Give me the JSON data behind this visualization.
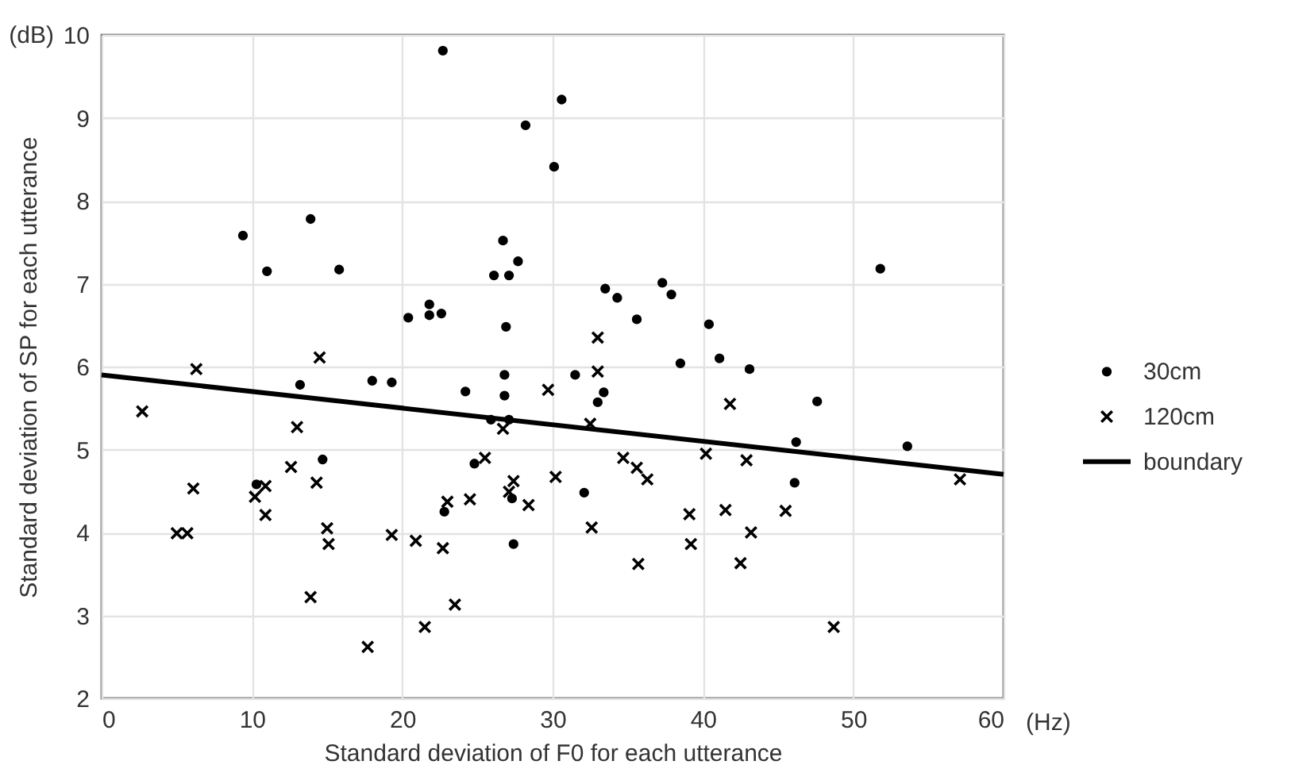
{
  "chart_data": {
    "type": "scatter",
    "xlabel": "Standard deviation of F0 for each utterance",
    "ylabel": "Standard deviation of SP for each utterance",
    "annotations": [
      "(dB)",
      "(Hz)"
    ],
    "xlim": [
      0,
      60
    ],
    "xticks": [
      0,
      10,
      20,
      30,
      40,
      50,
      60
    ],
    "ylim": [
      2,
      10
    ],
    "yticks": [
      2,
      3,
      4,
      5,
      6,
      7,
      8,
      9,
      10
    ],
    "grid": true,
    "legend": "right",
    "series": [
      {
        "name": "30cm",
        "color": "#000000",
        "marker": "circle",
        "x": [
          10.3,
          14.7,
          13.2,
          18.0,
          19.3,
          9.4,
          13.9,
          11.0,
          15.8,
          22.7,
          30.6,
          28.2,
          30.1,
          26.7,
          27.7,
          26.1,
          27.1,
          20.4,
          21.8,
          21.8,
          22.6,
          26.9,
          33.5,
          34.3,
          35.6,
          37.3,
          37.9,
          38.5,
          26.8,
          24.2,
          26.8,
          31.5,
          33.4,
          33.0,
          25.9,
          27.1,
          24.8,
          22.8,
          27.3,
          32.1,
          27.4,
          40.4,
          41.1,
          43.1,
          47.6,
          46.2,
          46.1,
          51.8,
          53.6
        ],
        "values": [
          4.58,
          4.88,
          5.78,
          5.83,
          5.81,
          7.58,
          7.78,
          7.15,
          7.17,
          9.81,
          9.22,
          8.91,
          8.41,
          7.52,
          7.27,
          7.1,
          7.1,
          6.59,
          6.75,
          6.62,
          6.64,
          6.48,
          6.94,
          6.83,
          6.57,
          7.01,
          6.87,
          6.04,
          5.9,
          5.7,
          5.65,
          5.9,
          5.69,
          5.57,
          5.36,
          5.36,
          4.83,
          4.25,
          4.41,
          4.48,
          3.86,
          6.51,
          6.1,
          5.97,
          5.58,
          5.09,
          4.6,
          7.18,
          5.04
        ]
      },
      {
        "name": "120cm",
        "color": "#000000",
        "marker": "cross",
        "x": [
          2.7,
          6.3,
          14.5,
          13.0,
          12.6,
          6.1,
          5.0,
          5.7,
          10.9,
          10.2,
          10.9,
          14.3,
          15.0,
          15.1,
          19.3,
          13.9,
          17.7,
          20.9,
          22.7,
          23.0,
          24.5,
          21.5,
          23.5,
          25.5,
          26.7,
          27.4,
          27.1,
          28.4,
          29.7,
          30.2,
          33.0,
          33.0,
          32.5,
          32.6,
          34.7,
          35.6,
          36.3,
          35.7,
          39.1,
          39.2,
          40.2,
          41.8,
          41.5,
          42.9,
          43.2,
          42.5,
          45.5,
          48.7,
          57.1
        ],
        "values": [
          5.46,
          5.97,
          6.11,
          5.27,
          4.79,
          4.53,
          3.99,
          3.99,
          4.56,
          4.43,
          4.21,
          4.6,
          4.05,
          3.86,
          3.97,
          3.22,
          2.62,
          3.9,
          3.81,
          4.37,
          4.4,
          2.86,
          3.13,
          4.9,
          5.25,
          4.62,
          4.49,
          4.33,
          5.72,
          4.67,
          6.35,
          5.94,
          5.31,
          4.06,
          4.9,
          4.78,
          4.64,
          3.62,
          4.22,
          3.86,
          4.95,
          5.55,
          4.27,
          4.87,
          4.0,
          3.63,
          4.26,
          2.86,
          4.64
        ]
      },
      {
        "name": "boundary",
        "type": "line",
        "color": "#000000",
        "x": [
          0,
          60
        ],
        "values": [
          5.9,
          4.7
        ]
      }
    ]
  }
}
